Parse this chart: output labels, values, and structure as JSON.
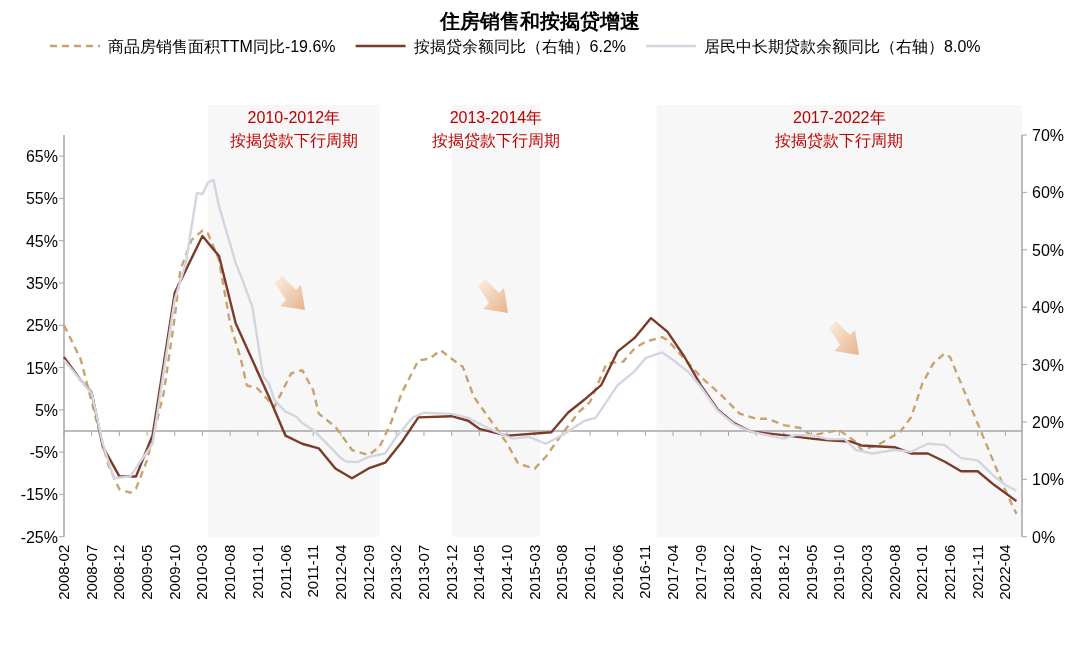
{
  "chart_data": {
    "type": "line",
    "title": "住房销售和按揭贷增速",
    "legend": "top",
    "grid": false,
    "marker": "none",
    "xlim": [
      "2008-02",
      "2022-07"
    ],
    "xticks": [
      "2008-02",
      "2008-07",
      "2008-12",
      "2009-05",
      "2009-10",
      "2010-03",
      "2010-08",
      "2011-01",
      "2011-06",
      "2011-11",
      "2012-04",
      "2012-09",
      "2013-02",
      "2013-07",
      "2013-12",
      "2014-05",
      "2014-10",
      "2015-03",
      "2015-08",
      "2016-01",
      "2016-06",
      "2016-11",
      "2017-04",
      "2017-09",
      "2018-02",
      "2018-07",
      "2018-12",
      "2019-05",
      "2019-10",
      "2020-03",
      "2020-08",
      "2021-01",
      "2021-06",
      "2021-11",
      "2022-04"
    ],
    "ylim": [
      -25,
      70
    ],
    "yticks": [
      {
        "value": -25,
        "label": "-25%"
      },
      {
        "value": -15,
        "label": "-15%"
      },
      {
        "value": -5,
        "label": "-5%"
      },
      {
        "value": 5,
        "label": "5%"
      },
      {
        "value": 15,
        "label": "15%"
      },
      {
        "value": 25,
        "label": "25%"
      },
      {
        "value": 35,
        "label": "35%"
      },
      {
        "value": 45,
        "label": "45%"
      },
      {
        "value": 55,
        "label": "55%"
      },
      {
        "value": 65,
        "label": "65%"
      }
    ],
    "y2lim": [
      0,
      70
    ],
    "y2ticks": [
      {
        "value": 0,
        "label": "0%"
      },
      {
        "value": 10,
        "label": "10%"
      },
      {
        "value": 20,
        "label": "20%"
      },
      {
        "value": 30,
        "label": "30%"
      },
      {
        "value": 40,
        "label": "40%"
      },
      {
        "value": 50,
        "label": "50%"
      },
      {
        "value": 60,
        "label": "60%"
      },
      {
        "value": 70,
        "label": "70%"
      }
    ],
    "ref_lines": [
      {
        "axis": "y",
        "value": 0,
        "color": "#a6a6a6"
      }
    ],
    "bands": [
      {
        "axis": "x",
        "from": "2010-04",
        "to": "2012-11",
        "label": "2010-2012年按揭贷款下行周期",
        "color": "#f7f7f7"
      },
      {
        "axis": "x",
        "from": "2013-12",
        "to": "2015-04",
        "label": "2013-2014年按揭贷款下行周期",
        "color": "#f7f7f7"
      },
      {
        "axis": "x",
        "from": "2017-01",
        "to": "2022-07",
        "label": "2017-2022年按揭贷款下行周期",
        "color": "#f7f7f7"
      }
    ],
    "series": [
      {
        "name": "商品房销售面积TTM同比-19.6%",
        "color": "#c9a36f",
        "line_style": "dashed",
        "x": [
          "2008-02",
          "2008-05",
          "2008-06",
          "2008-08",
          "2008-10",
          "2008-12",
          "2009-02",
          "2009-03",
          "2009-05",
          "2009-08",
          "2009-10",
          "2009-11",
          "2010-01",
          "2010-03",
          "2010-04",
          "2010-06",
          "2010-08",
          "2010-10",
          "2010-11",
          "2011-01",
          "2011-04",
          "2011-07",
          "2011-09",
          "2011-11",
          "2011-12",
          "2012-03",
          "2012-05",
          "2012-06",
          "2012-09",
          "2012-11",
          "2013-01",
          "2013-03",
          "2013-06",
          "2013-08",
          "2013-10",
          "2013-12",
          "2014-02",
          "2014-04",
          "2014-07",
          "2014-10",
          "2014-12",
          "2015-03",
          "2015-05",
          "2015-08",
          "2015-11",
          "2016-01",
          "2016-04",
          "2016-07",
          "2016-09",
          "2016-11",
          "2017-02",
          "2017-03",
          "2017-06",
          "2017-09",
          "2018-01",
          "2018-04",
          "2018-07",
          "2018-09",
          "2018-12",
          "2019-03",
          "2019-05",
          "2019-10",
          "2020-01",
          "2020-02",
          "2020-05",
          "2020-09",
          "2020-11",
          "2021-01",
          "2021-03",
          "2021-05",
          "2021-06",
          "2021-08",
          "2021-10",
          "2021-12",
          "2022-02",
          "2022-04",
          "2022-06"
        ],
        "values": [
          25,
          17,
          12,
          1.8,
          -8,
          -13.8,
          -14.6,
          -13.6,
          -6.9,
          8.9,
          26.9,
          38,
          45.1,
          47.4,
          46.7,
          40.4,
          25.4,
          16.7,
          10.8,
          10.0,
          5.7,
          13.6,
          14.4,
          9.6,
          4.1,
          1.0,
          -2.6,
          -4.5,
          -5.7,
          -3.7,
          1.8,
          9.0,
          16.7,
          17.1,
          19.1,
          17.1,
          15.2,
          8.1,
          2.6,
          -2.9,
          -7.7,
          -8.9,
          -6.1,
          -0.6,
          4.5,
          6.9,
          16,
          16.4,
          19.5,
          21.1,
          22.2,
          21.5,
          17.1,
          12.8,
          8.1,
          4.1,
          2.9,
          2.9,
          1.4,
          0.7,
          -1.0,
          0.2,
          -2.6,
          -4.5,
          -3.3,
          -0.2,
          3.3,
          11.2,
          16,
          18.3,
          17.5,
          11.2,
          4.9,
          -1.4,
          -7.7,
          -14.1,
          -19.6
        ]
      },
      {
        "name": "按揭贷余额同比（右轴）6.2%",
        "color": "#7b3b2a",
        "axis": "y2",
        "line_style": "solid",
        "x": [
          "2008-02",
          "2008-05",
          "2008-07",
          "2008-09",
          "2008-12",
          "2009-03",
          "2009-06",
          "2009-10",
          "2010-03",
          "2010-06",
          "2010-09",
          "2011-03",
          "2011-06",
          "2011-09",
          "2011-12",
          "2012-03",
          "2012-06",
          "2012-09",
          "2012-12",
          "2013-03",
          "2013-06",
          "2013-12",
          "2014-03",
          "2014-05",
          "2014-10",
          "2015-06",
          "2015-09",
          "2015-12",
          "2016-03",
          "2016-06",
          "2016-09",
          "2016-12",
          "2017-03",
          "2017-06",
          "2017-09",
          "2017-12",
          "2018-03",
          "2018-06",
          "2018-09",
          "2018-12",
          "2019-05",
          "2019-08",
          "2019-12",
          "2020-02",
          "2020-08",
          "2020-11",
          "2021-02",
          "2021-05",
          "2021-08",
          "2021-11",
          "2022-02",
          "2022-06"
        ],
        "values": [
          31.3,
          27.3,
          25.1,
          15.7,
          10.5,
          10.5,
          17.7,
          42.5,
          52.4,
          48.9,
          37.2,
          24.4,
          17.6,
          16.2,
          15.4,
          11.9,
          10.2,
          11.9,
          12.9,
          16.5,
          20.8,
          21.0,
          20.2,
          18.8,
          17.6,
          18.2,
          21.6,
          23.9,
          26.4,
          32.3,
          34.6,
          38.1,
          35.7,
          31.4,
          26.4,
          22.2,
          19.8,
          18.3,
          18.0,
          17.7,
          17.1,
          16.8,
          16.6,
          15.9,
          15.6,
          14.5,
          14.5,
          13.1,
          11.4,
          11.4,
          9.0,
          6.2
        ]
      },
      {
        "name": "居民中长期贷款余额同比（右轴）8.0%",
        "color": "#d3d6e0",
        "axis": "y2",
        "line_style": "solid",
        "x": [
          "2008-02",
          "2008-05",
          "2008-07",
          "2008-09",
          "2008-11",
          "2009-02",
          "2009-04",
          "2009-06",
          "2009-10",
          "2009-12",
          "2010-02",
          "2010-03",
          "2010-04",
          "2010-05",
          "2010-06",
          "2010-09",
          "2010-10",
          "2010-12",
          "2011-02",
          "2011-03",
          "2011-04",
          "2011-06",
          "2011-08",
          "2011-09",
          "2011-11",
          "2012-02",
          "2012-04",
          "2012-05",
          "2012-07",
          "2012-09",
          "2012-12",
          "2013-02",
          "2013-05",
          "2013-07",
          "2013-12",
          "2014-03",
          "2014-06",
          "2014-08",
          "2014-11",
          "2015-02",
          "2015-05",
          "2015-08",
          "2015-12",
          "2016-02",
          "2016-06",
          "2016-09",
          "2016-11",
          "2017-02",
          "2017-04",
          "2017-07",
          "2017-09",
          "2017-12",
          "2018-03",
          "2018-06",
          "2018-12",
          "2019-02",
          "2019-05",
          "2019-08",
          "2019-11",
          "2020-01",
          "2020-04",
          "2020-08",
          "2020-11",
          "2021-02",
          "2021-05",
          "2021-08",
          "2021-11",
          "2022-02",
          "2022-04",
          "2022-06"
        ],
        "values": [
          30.8,
          27.3,
          25.0,
          16.2,
          10.2,
          10.5,
          13.4,
          16.2,
          41.3,
          47.7,
          59.9,
          59.7,
          61.7,
          62.2,
          57.6,
          47.7,
          45.3,
          40.1,
          27.9,
          26.7,
          23.8,
          21.8,
          20.9,
          19.8,
          18.6,
          15.7,
          13.7,
          13.1,
          13.0,
          13.9,
          14.5,
          17.4,
          20.8,
          21.6,
          21.4,
          20.7,
          19.2,
          18.3,
          17.1,
          17.4,
          16.2,
          17.7,
          20.2,
          20.7,
          26.4,
          28.8,
          31.1,
          32.1,
          30.8,
          28.5,
          26.1,
          22.0,
          19.6,
          18.3,
          17.1,
          17.7,
          17.7,
          17.0,
          17.0,
          15.1,
          14.5,
          15.1,
          14.8,
          16.2,
          16.0,
          13.7,
          13.3,
          10.5,
          9.0,
          8.0
        ]
      }
    ]
  }
}
